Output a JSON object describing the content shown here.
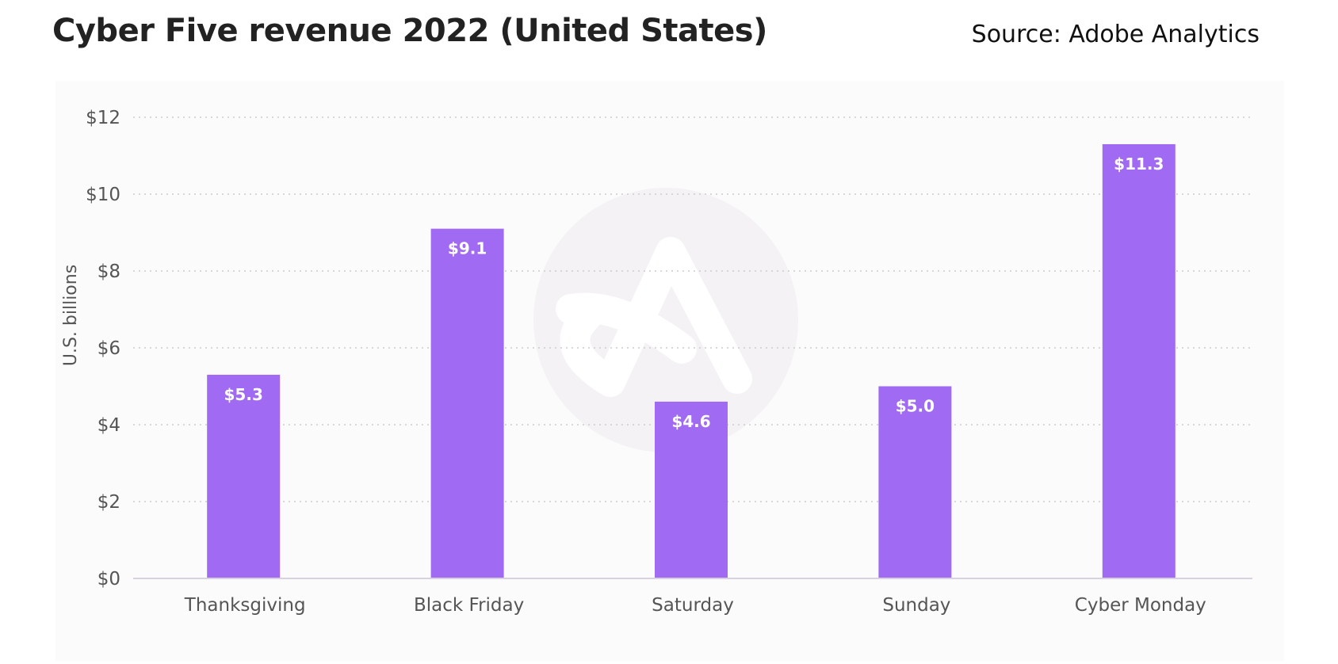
{
  "header": {
    "title": "Cyber Five revenue 2022 (United States)",
    "source": "Source: Adobe Analytics"
  },
  "watermark": {
    "icon": "adobe-analytics-logo-icon"
  },
  "colors": {
    "bar": "#a06af2",
    "grid": "#cccccc",
    "axis": "#d8d2e0",
    "panel": "#fcfbfc",
    "watermark": "#f4f2f5"
  },
  "chart_data": {
    "type": "bar",
    "title": "Cyber Five revenue 2022 (United States)",
    "xlabel": "",
    "ylabel": "U.S. billions",
    "categories": [
      "Thanksgiving",
      "Black Friday",
      "Saturday",
      "Sunday",
      "Cyber Monday"
    ],
    "values": [
      5.3,
      9.1,
      4.6,
      5.0,
      11.3
    ],
    "data_labels": [
      "$5.3",
      "$9.1",
      "$4.6",
      "$5.0",
      "$11.3"
    ],
    "ylim": [
      0,
      12
    ],
    "yticks": [
      0,
      2,
      4,
      6,
      8,
      10,
      12
    ],
    "ytick_labels": [
      "$0",
      "$2",
      "$4",
      "$6",
      "$8",
      "$10",
      "$12"
    ],
    "grid": true,
    "legend": "none"
  }
}
